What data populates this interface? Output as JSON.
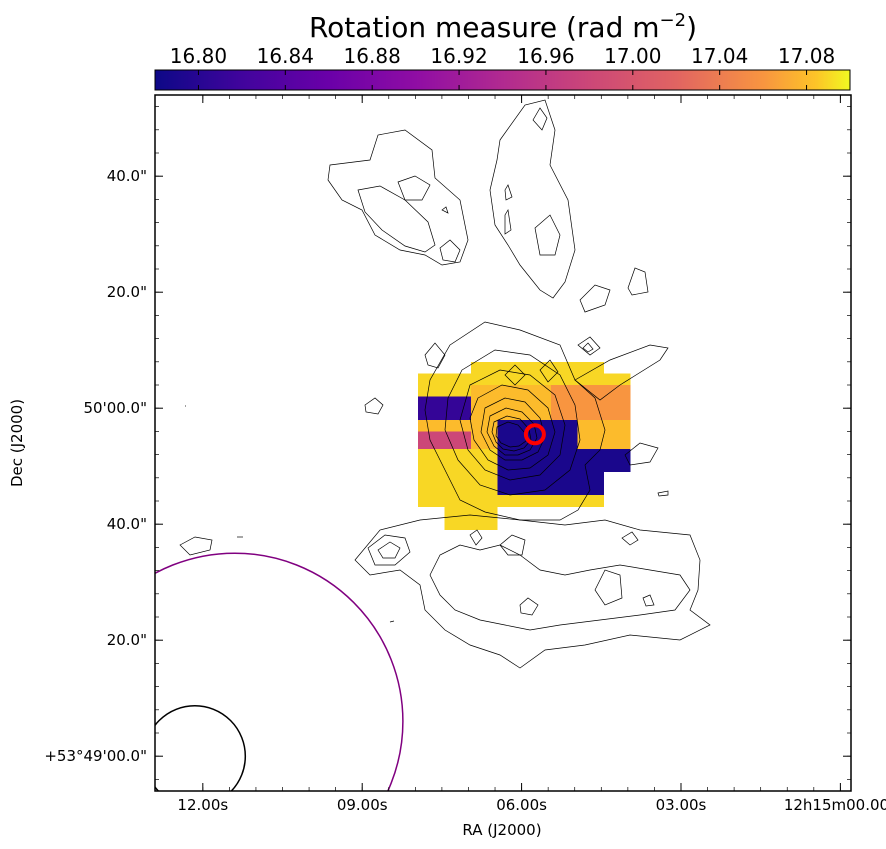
{
  "chart_data": {
    "type": "heatmap",
    "colorbar": {
      "title": "Rotation measure (rad m",
      "title_exponent": "−2",
      "title_close": ")",
      "colormap": "plasma",
      "range": [
        16.78,
        17.1
      ],
      "ticks": [
        "16.80",
        "16.84",
        "16.88",
        "16.92",
        "16.96",
        "17.00",
        "17.04",
        "17.08"
      ],
      "tick_values": [
        16.8,
        16.84,
        16.88,
        16.92,
        16.96,
        17.0,
        17.04,
        17.08
      ],
      "placement": "top"
    },
    "xlabel": "RA (J2000)",
    "ylabel": "Dec (J2000)",
    "x_ticks": [
      {
        "label": "12.00s",
        "ra_sec": 12.0
      },
      {
        "label": "09.00s",
        "ra_sec": 9.0
      },
      {
        "label": "06.00s",
        "ra_sec": 6.0
      },
      {
        "label": "03.00s",
        "ra_sec": 3.0
      },
      {
        "label": "12h15m00.00s",
        "ra_sec": 0.0
      }
    ],
    "y_ticks": [
      {
        "label": "40.0\"",
        "dec_arcsec": 100
      },
      {
        "label": "20.0\"",
        "dec_arcsec": 80
      },
      {
        "label": "50'00.0\"",
        "dec_arcsec": 60
      },
      {
        "label": "40.0\"",
        "dec_arcsec": 40
      },
      {
        "label": "20.0\"",
        "dec_arcsec": 20
      },
      {
        "label": "+53°49'00.0\"",
        "dec_arcsec": 0
      }
    ],
    "xlim_ra_sec": [
      12.9,
      -0.2
    ],
    "ylim_dec_arcsec": [
      -6.0,
      114.0
    ],
    "rm_pixels": [
      {
        "ra": [
          7.95,
          3.95
        ],
        "dec": [
          64,
          66
        ],
        "value": 17.09
      },
      {
        "ra": [
          6.95,
          4.45
        ],
        "dec": [
          66,
          68
        ],
        "value": 17.09
      },
      {
        "ra": [
          7.95,
          6.95
        ],
        "dec": [
          58,
          64
        ],
        "value": 17.09
      },
      {
        "ra": [
          7.95,
          6.45
        ],
        "dec": [
          51,
          58
        ],
        "value": 17.09
      },
      {
        "ra": [
          6.95,
          5.45
        ],
        "dec": [
          58,
          64
        ],
        "value": 17.08
      },
      {
        "ra": [
          5.45,
          3.95
        ],
        "dec": [
          58,
          64
        ],
        "value": 17.06
      },
      {
        "ra": [
          7.95,
          6.95
        ],
        "dec": [
          58,
          62
        ],
        "value": 16.81
      },
      {
        "ra": [
          7.95,
          6.45
        ],
        "dec": [
          51,
          58
        ],
        "value": 17.08
      },
      {
        "ra": [
          7.95,
          5.45
        ],
        "dec": [
          51,
          53
        ],
        "value": 17.09
      },
      {
        "ra": [
          7.95,
          5.45
        ],
        "dec": [
          43,
          51
        ],
        "value": 17.09
      },
      {
        "ra": [
          7.45,
          6.45
        ],
        "dec": [
          39,
          43
        ],
        "value": 17.09
      },
      {
        "ra": [
          5.45,
          3.95
        ],
        "dec": [
          51,
          58
        ],
        "value": 17.08
      },
      {
        "ra": [
          6.45,
          4.45
        ],
        "dec": [
          43,
          49
        ],
        "value": 17.09
      },
      {
        "ra": [
          7.95,
          6.95
        ],
        "dec": [
          53,
          56
        ],
        "value": 16.98
      },
      {
        "ra": [
          6.45,
          4.95
        ],
        "dec": [
          53,
          58
        ],
        "value": 16.79
      },
      {
        "ra": [
          6.45,
          3.95
        ],
        "dec": [
          49,
          53
        ],
        "value": 16.79
      },
      {
        "ra": [
          6.45,
          4.45
        ],
        "dec": [
          45,
          49
        ],
        "value": 16.79
      }
    ],
    "source_marker": {
      "ra": 5.75,
      "dec": 55.5,
      "color": "#ff0000"
    },
    "beams": [
      {
        "name": "",
        "ra": 11.4,
        "dec": 6.0,
        "diameter_arcsec": 20.0,
        "color": "#800080"
      },
      {
        "name": "",
        "ra": 12.15,
        "dec": 0.0,
        "diameter_arcsec": 6.0,
        "color": "#000000"
      }
    ],
    "contour_color": "#000000",
    "grid": false
  }
}
